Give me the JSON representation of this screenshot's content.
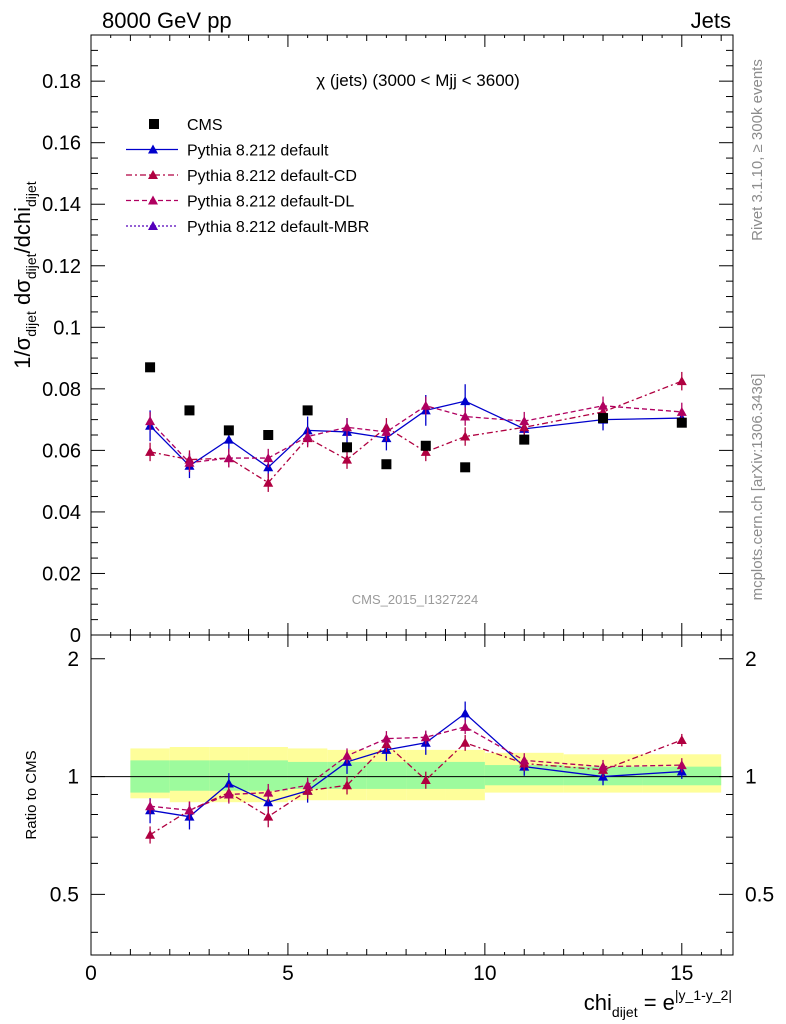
{
  "header": {
    "left": "8000 GeV pp",
    "right": "Jets"
  },
  "side_labels": {
    "top": "Rivet 3.1.10, ≥ 300k events",
    "bottom": "mcplots.cern.ch [arXiv:1306.3436]"
  },
  "watermark": "CMS_2015_I1327224",
  "chart_data": {
    "type": "scatter",
    "title": "χ (jets) (3000 < Mjj < 3600)",
    "ylabel": "1/σ_dijet dσ_dijet/dchi_dijet",
    "xlabel": "chi_dijet = e^|y_1-y_2|",
    "ratio_ylabel": "Ratio to CMS",
    "xlim": [
      0,
      16.3
    ],
    "ylim": [
      0,
      0.195
    ],
    "ratio_ylim": [
      0.35,
      2.3
    ],
    "ratio_scale": "log",
    "x_ticks": [
      "0",
      "5",
      "10",
      "15"
    ],
    "y_ticks": [
      "0",
      "0.02",
      "0.04",
      "0.06",
      "0.08",
      "0.1",
      "0.12",
      "0.14",
      "0.16",
      "0.18"
    ],
    "ratio_ticks": [
      "0.5",
      "1",
      "2"
    ],
    "x": [
      1.5,
      2.5,
      3.5,
      4.5,
      5.5,
      6.5,
      7.5,
      8.5,
      9.5,
      11,
      13,
      15
    ],
    "x_edges": [
      1,
      2,
      3,
      4,
      5,
      6,
      7,
      8,
      9,
      10,
      12,
      14,
      16
    ],
    "legend": {
      "placement": "top-left"
    },
    "data": {
      "name": "CMS",
      "color": "#000000",
      "values": [
        0.087,
        0.073,
        0.0665,
        0.065,
        0.073,
        0.061,
        0.0555,
        0.0615,
        0.0545,
        0.0635,
        0.0705,
        0.069
      ]
    },
    "series": [
      {
        "name": "Pythia 8.212 default",
        "color": "#0000cc",
        "dash": "solid",
        "values": [
          0.068,
          0.055,
          0.0635,
          0.0545,
          0.0665,
          0.066,
          0.064,
          0.073,
          0.076,
          0.067,
          0.07,
          0.0705
        ],
        "errors": [
          0.005,
          0.004,
          0.004,
          0.0035,
          0.0045,
          0.0045,
          0.004,
          0.005,
          0.0055,
          0.0035,
          0.0035,
          0.003
        ],
        "ratio": [
          0.82,
          0.79,
          0.96,
          0.86,
          0.92,
          1.09,
          1.17,
          1.22,
          1.45,
          1.06,
          1.0,
          1.03
        ]
      },
      {
        "name": "Pythia 8.212 default-CD",
        "color": "#b00040",
        "dash": "dashdot",
        "values": [
          0.0595,
          0.057,
          0.0575,
          0.0495,
          0.064,
          0.057,
          0.0675,
          0.0595,
          0.0645,
          0.0675,
          0.0725,
          0.0825
        ],
        "errors": [
          0.003,
          0.003,
          0.003,
          0.003,
          0.003,
          0.003,
          0.003,
          0.003,
          0.003,
          0.003,
          0.003,
          0.003
        ],
        "ratio": [
          0.71,
          0.82,
          0.91,
          0.79,
          0.92,
          0.95,
          1.21,
          0.98,
          1.22,
          1.08,
          1.04,
          1.24
        ]
      },
      {
        "name": "Pythia 8.212 default-DL",
        "color": "#b00060",
        "dash": "dashed",
        "values": [
          0.0695,
          0.056,
          0.0575,
          0.0575,
          0.0645,
          0.0675,
          0.066,
          0.0745,
          0.071,
          0.0695,
          0.0745,
          0.0725
        ],
        "errors": [
          0.003,
          0.003,
          0.003,
          0.003,
          0.003,
          0.003,
          0.003,
          0.003,
          0.003,
          0.003,
          0.003,
          0.003
        ],
        "ratio": [
          0.84,
          0.82,
          0.9,
          0.91,
          0.95,
          1.13,
          1.25,
          1.26,
          1.34,
          1.1,
          1.06,
          1.07
        ]
      },
      {
        "name": "Pythia 8.212 default-MBR",
        "color": "#5500bb",
        "dash": "dotted",
        "values": [],
        "errors": [],
        "ratio": []
      }
    ],
    "ratio_band": {
      "inner": [
        [
          0.91,
          1.1
        ],
        [
          0.92,
          1.1
        ],
        [
          0.92,
          1.1
        ],
        [
          0.92,
          1.1
        ],
        [
          0.93,
          1.09
        ],
        [
          0.93,
          1.09
        ],
        [
          0.93,
          1.09
        ],
        [
          0.93,
          1.09
        ],
        [
          0.93,
          1.09
        ],
        [
          0.95,
          1.07
        ],
        [
          0.95,
          1.06
        ],
        [
          0.95,
          1.06
        ]
      ],
      "outer": [
        [
          0.88,
          1.18
        ],
        [
          0.86,
          1.19
        ],
        [
          0.86,
          1.19
        ],
        [
          0.86,
          1.19
        ],
        [
          0.87,
          1.18
        ],
        [
          0.87,
          1.17
        ],
        [
          0.87,
          1.17
        ],
        [
          0.87,
          1.17
        ],
        [
          0.87,
          1.17
        ],
        [
          0.91,
          1.15
        ],
        [
          0.91,
          1.14
        ],
        [
          0.91,
          1.14
        ]
      ],
      "inner_color": "#9dfb9d",
      "outer_color": "#fefe9a"
    }
  }
}
